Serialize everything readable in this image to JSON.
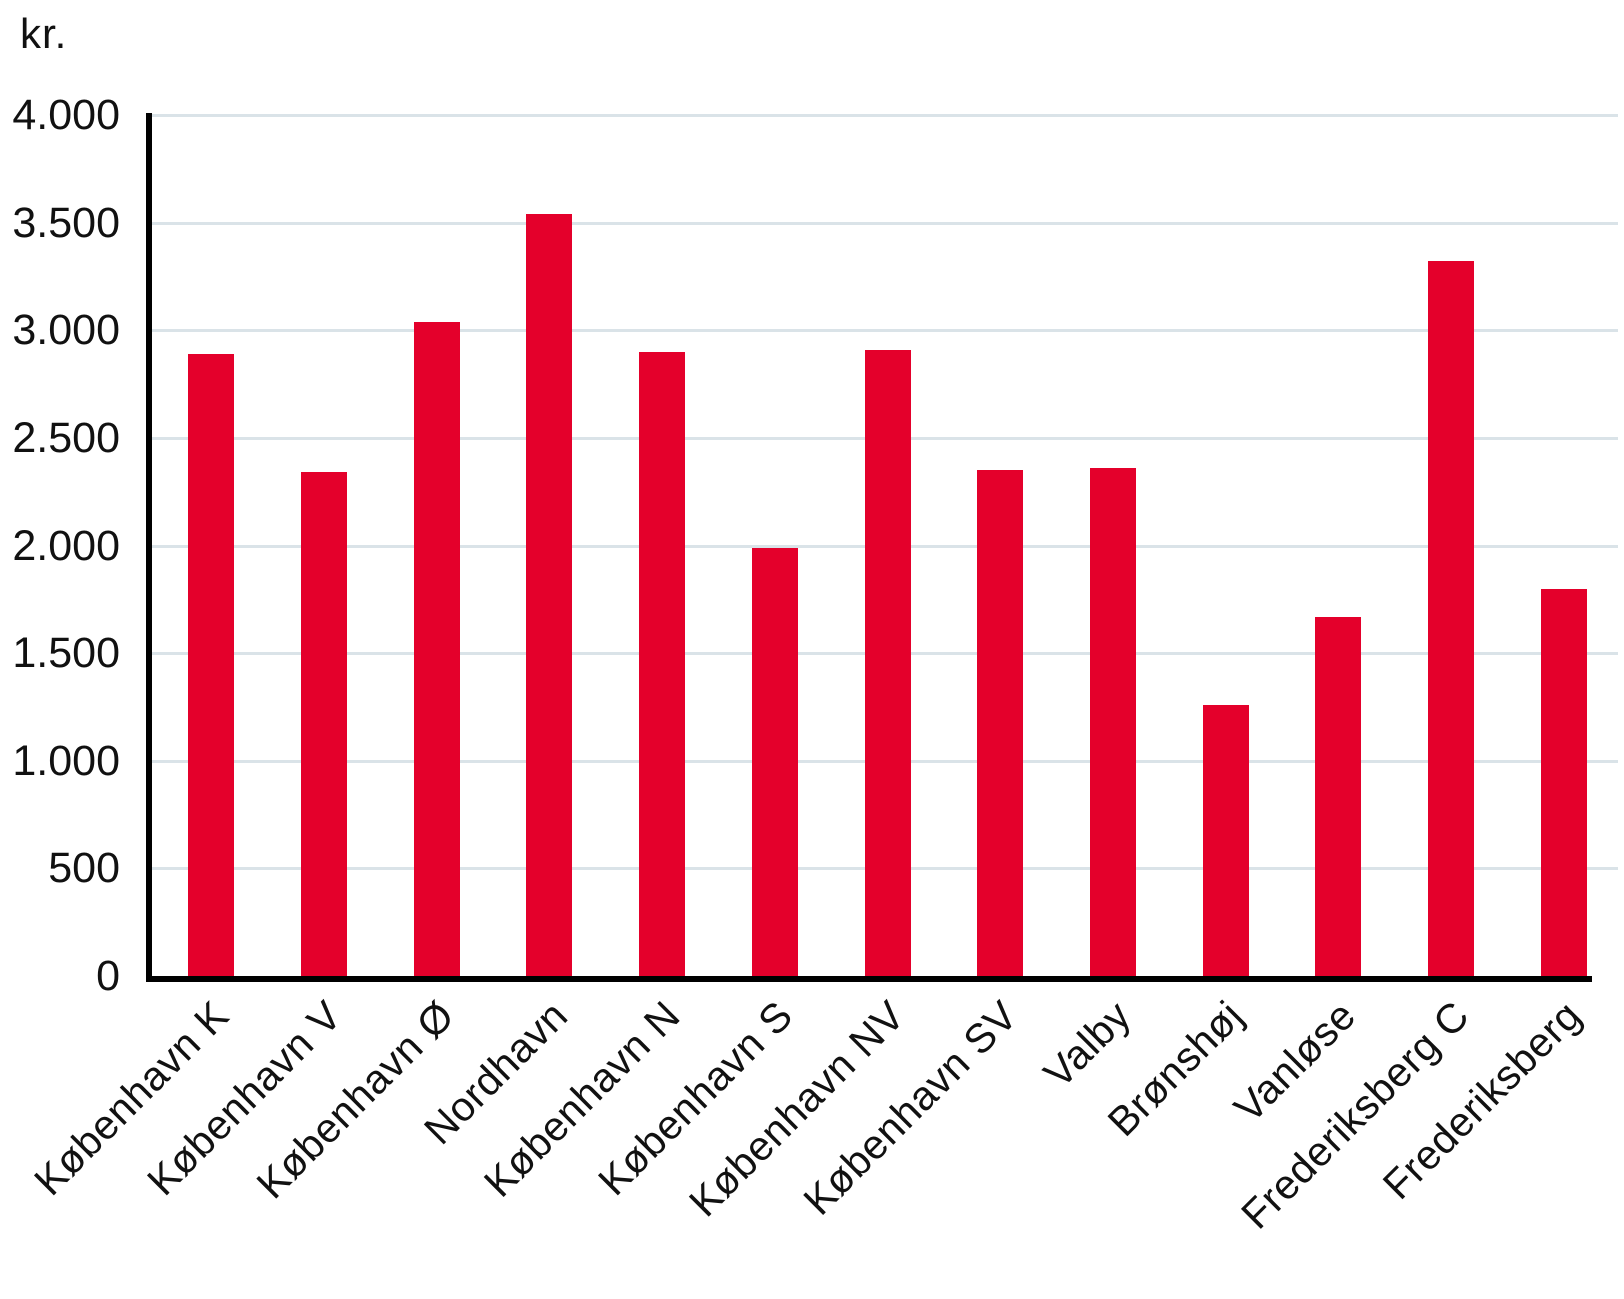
{
  "colors": {
    "bar": "#E4002B",
    "gridline": "#DAE3E8",
    "axis": "#000000",
    "text": "#111111",
    "background": "#FFFFFF"
  },
  "chart_data": {
    "type": "bar",
    "title": "",
    "ylabel": "kr.",
    "xlabel": "",
    "categories": [
      "København K",
      "København V",
      "København Ø",
      "Nordhavn",
      "København N",
      "København S",
      "København NV",
      "København SV",
      "Valby",
      "Brønshøj",
      "Vanløse",
      "Frederiksberg C",
      "Frederiksberg"
    ],
    "values": [
      2890,
      2340,
      3040,
      3540,
      2900,
      1990,
      2910,
      2350,
      2360,
      1260,
      1670,
      3320,
      1800
    ],
    "ylim": [
      0,
      4000
    ],
    "ytick_interval": 500,
    "ytick_labels": [
      "0",
      "500",
      "1.000",
      "1.500",
      "2.000",
      "2.500",
      "3.000",
      "3.500",
      "4.000"
    ],
    "grid": true,
    "legend": false,
    "x_label_rotation_deg": 45
  }
}
